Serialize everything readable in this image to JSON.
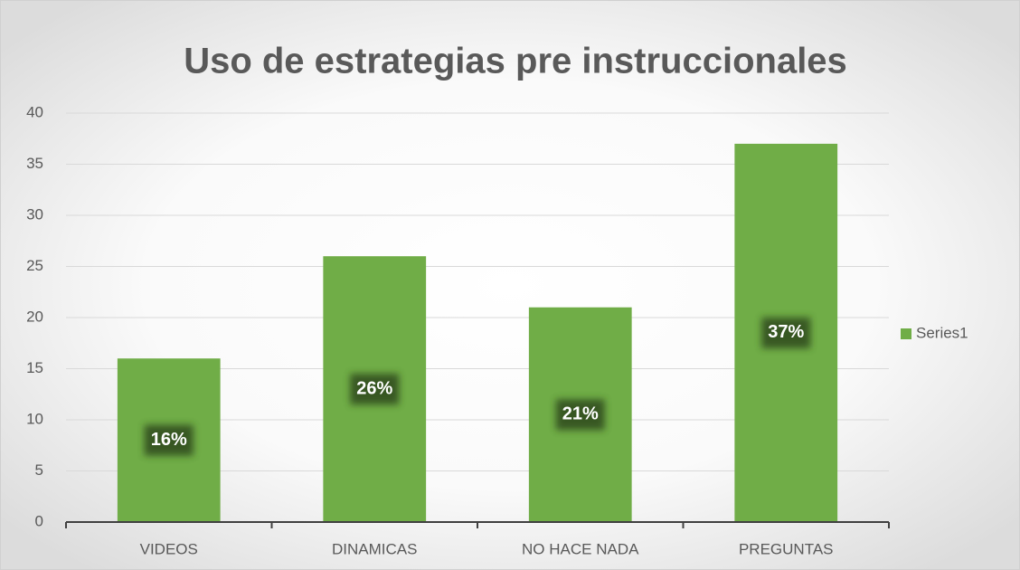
{
  "chart_data": {
    "type": "bar",
    "title": "Uso de estrategias pre instruccionales",
    "categories": [
      "VIDEOS",
      "DINAMICAS",
      "NO HACE NADA",
      "PREGUNTAS"
    ],
    "series": [
      {
        "name": "Series1",
        "color": "#70ad47",
        "values": [
          16,
          26,
          21,
          37
        ],
        "value_labels": [
          "16%",
          "26%",
          "21%",
          "37%"
        ]
      }
    ],
    "ylim": [
      0,
      40
    ],
    "yticks": [
      0,
      5,
      10,
      15,
      20,
      25,
      30,
      35,
      40
    ],
    "grid": true,
    "legend": "right"
  }
}
